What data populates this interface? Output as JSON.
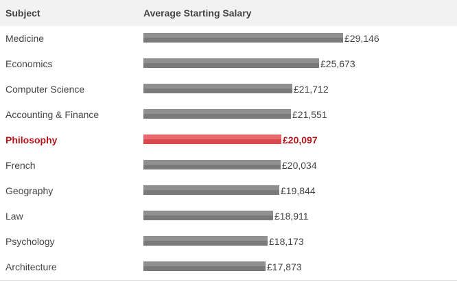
{
  "chart_data": {
    "type": "bar",
    "orientation": "horizontal",
    "columns": [
      "Subject",
      "Average Starting Salary"
    ],
    "categories": [
      "Medicine",
      "Economics",
      "Computer Science",
      "Accounting & Finance",
      "Philosophy",
      "French",
      "Geography",
      "Law",
      "Psychology",
      "Architecture"
    ],
    "values": [
      29146,
      25673,
      21712,
      21551,
      20097,
      20034,
      19844,
      18911,
      18173,
      17873
    ],
    "value_labels": [
      "£29,146",
      "£25,673",
      "£21,712",
      "£21,551",
      "£20,097",
      "£20,034",
      "£19,844",
      "£18,911",
      "£18,173",
      "£17,873"
    ],
    "highlighted": "Philosophy",
    "xlim": [
      0,
      29146
    ],
    "colors": {
      "bar": "#888888",
      "highlight_bar": "#e05a5f",
      "highlight_text": "#b5141b",
      "header_bg": "#f2f2f2"
    }
  }
}
